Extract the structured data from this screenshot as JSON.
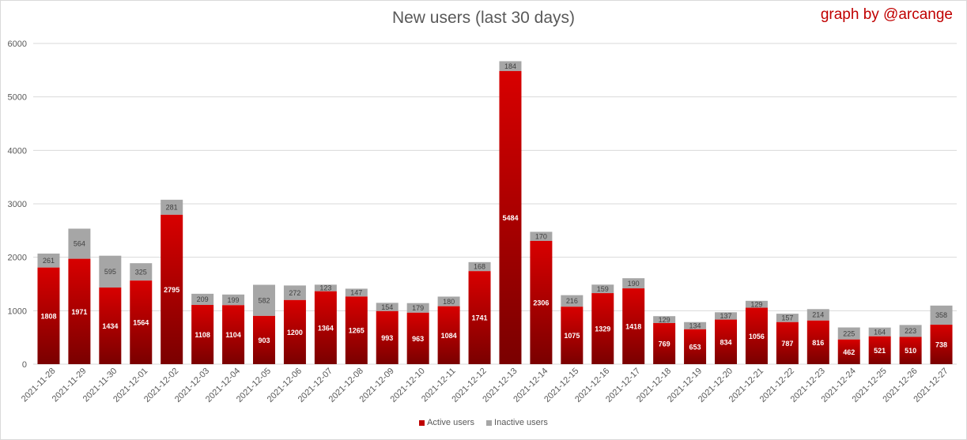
{
  "title": "New users (last 30 days)",
  "credit": "graph by @arcange",
  "colors": {
    "active": "#c00000",
    "inactive": "#a6a6a6",
    "grid": "#d9d9d9",
    "text": "#595959"
  },
  "chart_data": {
    "type": "bar",
    "stacked": true,
    "title": "New users (last 30 days)",
    "ylim": [
      0,
      6000
    ],
    "yticks": [
      0,
      1000,
      2000,
      3000,
      4000,
      5000,
      6000
    ],
    "grid": true,
    "legend_position": "bottom",
    "categories": [
      "2021-11-28",
      "2021-11-29",
      "2021-11-30",
      "2021-12-01",
      "2021-12-02",
      "2021-12-03",
      "2021-12-04",
      "2021-12-05",
      "2021-12-06",
      "2021-12-07",
      "2021-12-08",
      "2021-12-09",
      "2021-12-10",
      "2021-12-11",
      "2021-12-12",
      "2021-12-13",
      "2021-12-14",
      "2021-12-15",
      "2021-12-16",
      "2021-12-17",
      "2021-12-18",
      "2021-12-19",
      "2021-12-20",
      "2021-12-21",
      "2021-12-22",
      "2021-12-23",
      "2021-12-24",
      "2021-12-25",
      "2021-12-26",
      "2021-12-27"
    ],
    "series": [
      {
        "name": "Active users",
        "values": [
          1808,
          1971,
          1434,
          1564,
          2795,
          1108,
          1104,
          903,
          1200,
          1364,
          1265,
          993,
          963,
          1084,
          1741,
          5484,
          2306,
          1075,
          1329,
          1418,
          769,
          653,
          834,
          1056,
          787,
          816,
          462,
          521,
          510,
          738
        ]
      },
      {
        "name": "Inactive users",
        "values": [
          261,
          564,
          595,
          325,
          281,
          209,
          199,
          582,
          272,
          123,
          147,
          154,
          179,
          180,
          168,
          184,
          170,
          216,
          159,
          190,
          129,
          134,
          137,
          129,
          157,
          214,
          225,
          164,
          223,
          358
        ]
      }
    ]
  }
}
